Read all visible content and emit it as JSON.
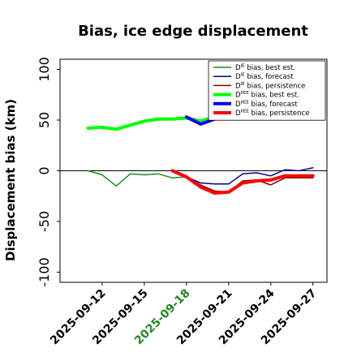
{
  "chart_data": {
    "type": "line",
    "title": "Bias, ice edge displacement",
    "xlabel": "",
    "ylabel": "Displacement bias (km)",
    "ylim": [
      -110,
      110
    ],
    "yticks": [
      -100,
      -50,
      0,
      50,
      100
    ],
    "x_ticks": [
      "2025-09-12",
      "2025-09-15",
      "2025-09-18",
      "2025-09-21",
      "2025-09-24",
      "2025-09-27"
    ],
    "highlight_tick": "2025-09-18",
    "highlight_color": "#228b22",
    "x_range": [
      "2025-09-09",
      "2025-09-28"
    ],
    "zero_line": true,
    "grid": false,
    "legend_placement": "top-right",
    "series": [
      {
        "name_main": "D",
        "name_sup": "IE",
        "name_rest": " bias, best est.",
        "color": "#228b22",
        "width": 1.5,
        "x": [
          "2025-09-11",
          "2025-09-12",
          "2025-09-13",
          "2025-09-14",
          "2025-09-15",
          "2025-09-16",
          "2025-09-17",
          "2025-09-18"
        ],
        "values": [
          0,
          -4,
          -15,
          -3,
          -4,
          -3,
          -7,
          -6
        ]
      },
      {
        "name_main": "D",
        "name_sup": "IE",
        "name_rest": " bias, forecast",
        "color": "#00008b",
        "width": 1.5,
        "x": [
          "2025-09-18",
          "2025-09-19",
          "2025-09-20",
          "2025-09-21",
          "2025-09-22",
          "2025-09-23",
          "2025-09-24",
          "2025-09-25",
          "2025-09-26",
          "2025-09-27"
        ],
        "values": [
          -6,
          -12,
          -13,
          -13,
          -3,
          -2,
          -5,
          1,
          0,
          3
        ]
      },
      {
        "name_main": "D",
        "name_sup": "IE",
        "name_rest": " bias, persistence",
        "color": "#8b0000",
        "width": 1.5,
        "x": [
          "2025-09-18",
          "2025-09-19",
          "2025-09-20",
          "2025-09-21",
          "2025-09-22",
          "2025-09-23",
          "2025-09-24",
          "2025-09-25",
          "2025-09-26",
          "2025-09-27"
        ],
        "values": [
          -6,
          -14,
          -20,
          -21,
          -10,
          -9,
          -14,
          -7,
          -7,
          -7
        ]
      },
      {
        "name_main": "D",
        "name_sup": "IIEE",
        "name_rest": " bias, best est.",
        "color": "#00ff00",
        "width": 4,
        "x": [
          "2025-09-11",
          "2025-09-12",
          "2025-09-13",
          "2025-09-14",
          "2025-09-15",
          "2025-09-16",
          "2025-09-17",
          "2025-09-18",
          "2025-09-19",
          "2025-09-20",
          "2025-09-21"
        ],
        "values": [
          42,
          43,
          41,
          45,
          49,
          51,
          51,
          52,
          49,
          53,
          55
        ]
      },
      {
        "name_main": "D",
        "name_sup": "IIEE",
        "name_rest": " bias, forecast",
        "color": "#0000ff",
        "width": 4,
        "x": [
          "2025-09-18",
          "2025-09-19",
          "2025-09-20",
          "2025-09-21"
        ],
        "values": [
          53,
          46,
          51,
          55
        ]
      },
      {
        "name_main": "D",
        "name_sup": "IIEE",
        "name_rest": " bias, persistence",
        "color": "#ff0000",
        "width": 4,
        "x": [
          "2025-09-17",
          "2025-09-18",
          "2025-09-19",
          "2025-09-20",
          "2025-09-21",
          "2025-09-22",
          "2025-09-23",
          "2025-09-24",
          "2025-09-25",
          "2025-09-26",
          "2025-09-27"
        ],
        "values": [
          0,
          -6,
          -16,
          -22,
          -21,
          -12,
          -10,
          -9,
          -5,
          -5,
          -5
        ]
      }
    ]
  }
}
